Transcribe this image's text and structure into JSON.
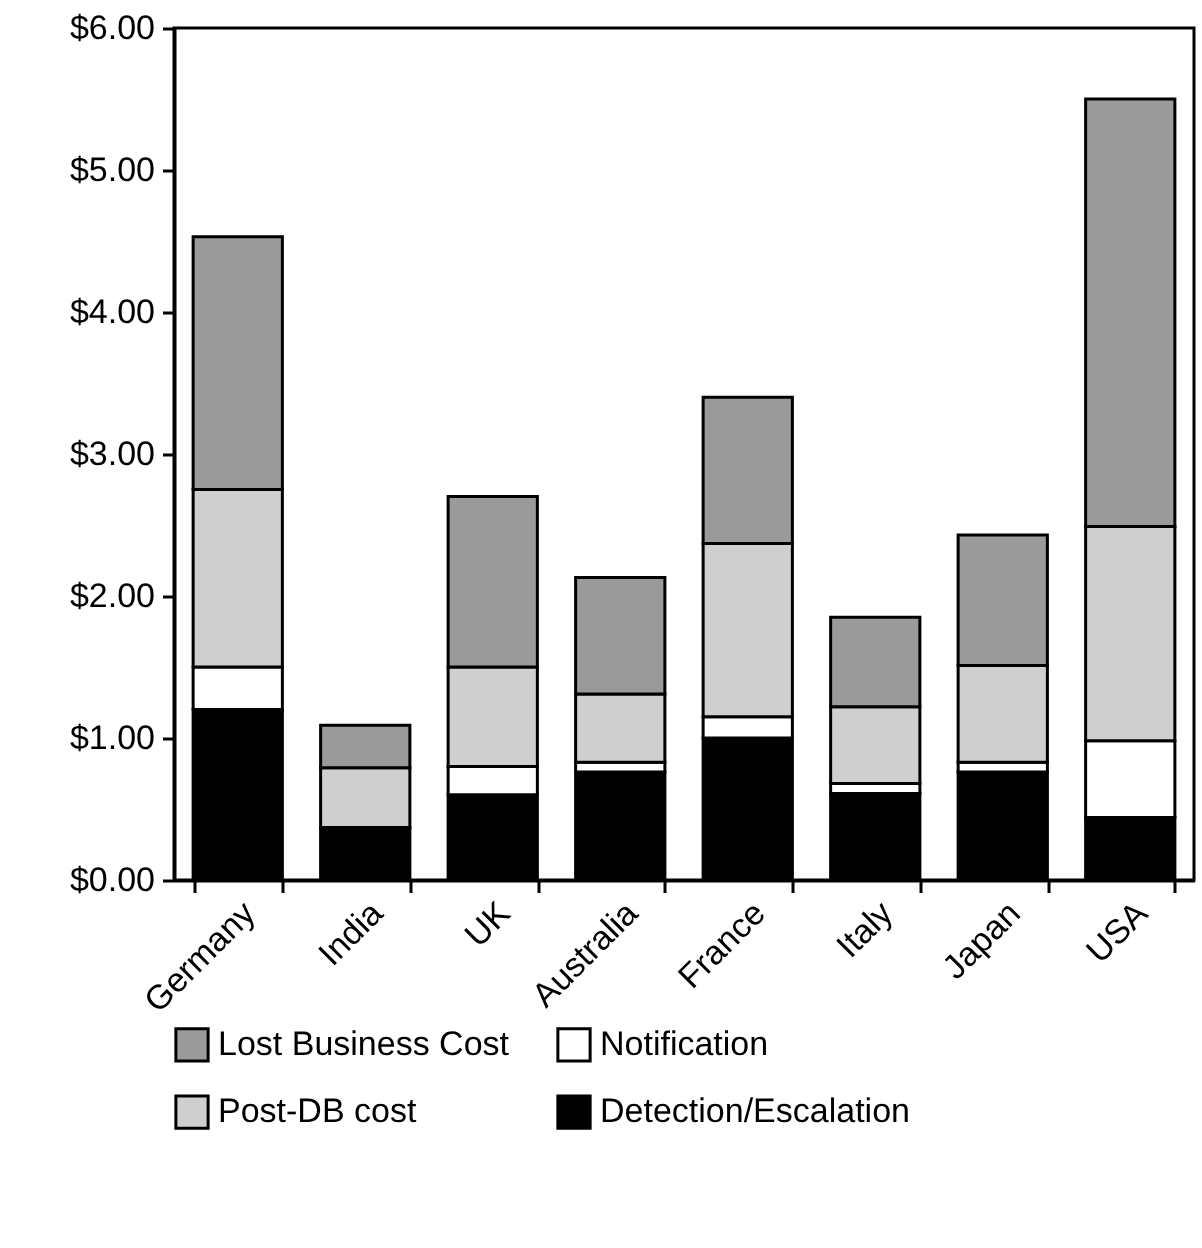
{
  "chart_data": {
    "type": "bar",
    "stacked": true,
    "categories": [
      "Germany",
      "India",
      "UK",
      "Australia",
      "France",
      "Italy",
      "Japan",
      "USA"
    ],
    "series": [
      {
        "name": "Detection/Escalation",
        "color": "#000000",
        "values": [
          1.2,
          0.37,
          0.6,
          0.76,
          1.0,
          0.61,
          0.76,
          0.44
        ]
      },
      {
        "name": "Notification",
        "color": "#ffffff",
        "values": [
          0.3,
          0,
          0.2,
          0.07,
          0.15,
          0.07,
          0.07,
          0.54
        ]
      },
      {
        "name": "Post-DB cost",
        "color": "#cfcfcf",
        "values": [
          1.25,
          0.42,
          0.7,
          0.48,
          1.22,
          0.54,
          0.68,
          1.51
        ]
      },
      {
        "name": "Lost Business Cost",
        "color": "#9a9a9a",
        "values": [
          1.78,
          0.3,
          1.2,
          0.82,
          1.03,
          0.63,
          0.92,
          3.01
        ]
      }
    ],
    "ylim": [
      0,
      6
    ],
    "yticks": [
      {
        "value": 0,
        "label": "$0.00"
      },
      {
        "value": 1,
        "label": "$1.00"
      },
      {
        "value": 2,
        "label": "$2.00"
      },
      {
        "value": 3,
        "label": "$3.00"
      },
      {
        "value": 4,
        "label": "$4.00"
      },
      {
        "value": 5,
        "label": "$5.00"
      },
      {
        "value": 6,
        "label": "$6.00"
      }
    ],
    "grid": false,
    "legend": "bottom"
  }
}
